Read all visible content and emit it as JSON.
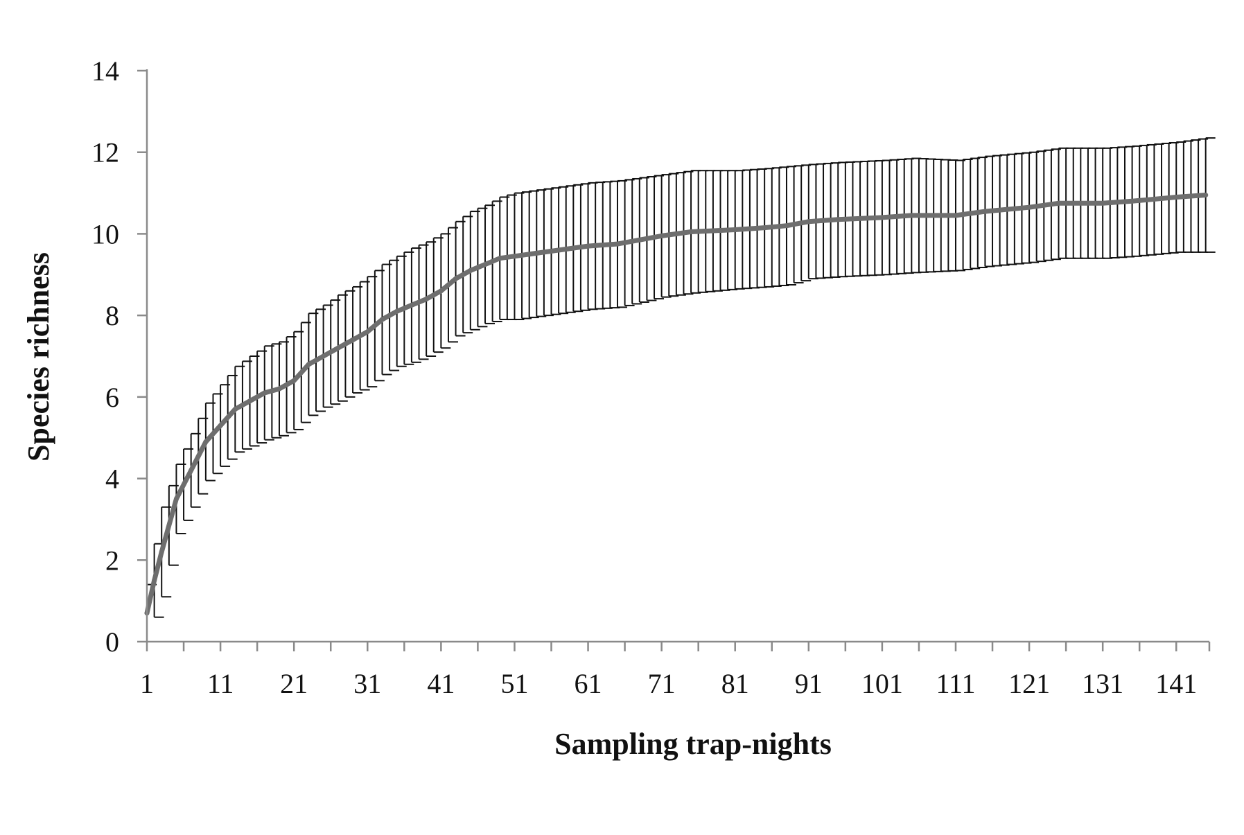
{
  "chart_data": {
    "type": "line",
    "title": "",
    "xlabel": "Sampling trap-nights",
    "ylabel": "Species richness",
    "ylim": [
      0,
      14
    ],
    "yticks": [
      0,
      2,
      4,
      6,
      8,
      10,
      12,
      14
    ],
    "xlim": [
      1,
      145
    ],
    "xticks": [
      1,
      11,
      21,
      31,
      41,
      51,
      61,
      71,
      81,
      91,
      101,
      111,
      121,
      131,
      141
    ],
    "grid": false,
    "legend": "none",
    "error_bars": "mean ± SD at each trap-night",
    "series": [
      {
        "name": "",
        "color": "#6e6e6e",
        "error_color": "#111111",
        "x": [
          1,
          2,
          3,
          5,
          7,
          9,
          11,
          13,
          15,
          17,
          19,
          21,
          23,
          25,
          27,
          29,
          31,
          33,
          35,
          37,
          39,
          41,
          43,
          45,
          47,
          49,
          51,
          55,
          61,
          65,
          71,
          75,
          81,
          85,
          88,
          91,
          95,
          101,
          105,
          111,
          115,
          121,
          125,
          131,
          135,
          141,
          145
        ],
        "y": [
          0.7,
          1.5,
          2.2,
          3.5,
          4.2,
          4.9,
          5.3,
          5.7,
          5.9,
          6.1,
          6.2,
          6.4,
          6.8,
          7.0,
          7.2,
          7.4,
          7.6,
          7.9,
          8.1,
          8.25,
          8.4,
          8.6,
          8.9,
          9.1,
          9.25,
          9.4,
          9.45,
          9.55,
          9.7,
          9.75,
          9.95,
          10.05,
          10.1,
          10.15,
          10.2,
          10.3,
          10.35,
          10.4,
          10.45,
          10.45,
          10.55,
          10.65,
          10.75,
          10.75,
          10.8,
          10.9,
          10.95
        ],
        "error": [
          0.7,
          0.9,
          1.1,
          0.85,
          0.9,
          0.95,
          1.0,
          1.05,
          1.1,
          1.15,
          1.15,
          1.2,
          1.25,
          1.25,
          1.3,
          1.3,
          1.35,
          1.35,
          1.35,
          1.4,
          1.4,
          1.4,
          1.4,
          1.45,
          1.45,
          1.5,
          1.55,
          1.55,
          1.55,
          1.55,
          1.5,
          1.5,
          1.45,
          1.45,
          1.45,
          1.4,
          1.4,
          1.4,
          1.4,
          1.35,
          1.35,
          1.35,
          1.35,
          1.35,
          1.35,
          1.35,
          1.4
        ]
      }
    ]
  }
}
